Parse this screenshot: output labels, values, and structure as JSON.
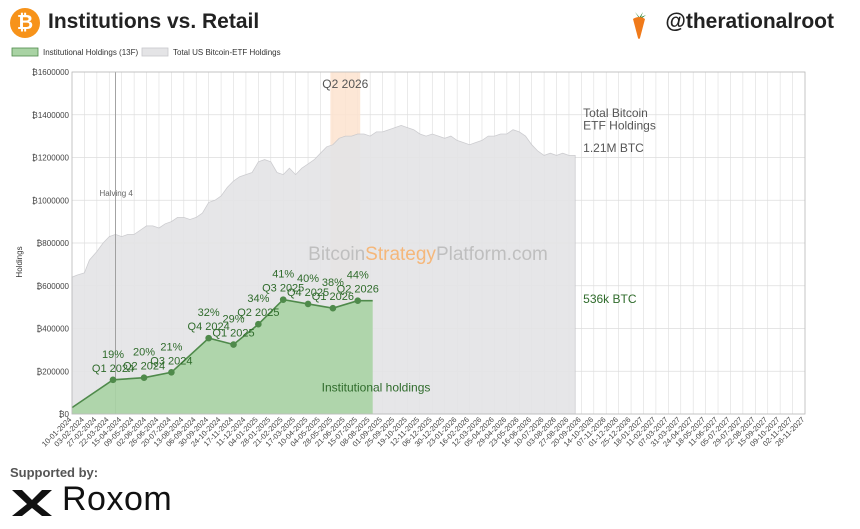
{
  "header": {
    "title": "Institutions vs. Retail",
    "brand": "@therationalroot",
    "logo_icon": "bitcoin-icon",
    "brand_icon": "carrot-icon"
  },
  "footer": {
    "supported_by": "Supported by:",
    "sponsor": "Roxom",
    "sponsor_icon": "roxom-logo-icon"
  },
  "chart_data": {
    "type": "area",
    "legend": [
      {
        "name": "Institutional Holdings (13F)",
        "color": "#a9d3a4"
      },
      {
        "name": "Total US Bitcoin-ETF Holdings",
        "color": "#e4e4e6"
      }
    ],
    "legend_position": "top-left",
    "ylabel": "Holdings",
    "yticks": [
      "₿0",
      "₿200000",
      "₿400000",
      "₿600000",
      "₿800000",
      "₿1000000",
      "₿1200000",
      "₿1400000",
      "₿1600000"
    ],
    "ylim": [
      0,
      1600000
    ],
    "grid": true,
    "watermark": {
      "pre": "Bitcoin",
      "mid": "Strategy",
      "post": "Platform.com"
    },
    "xticks": [
      "10-01-2024",
      "03-02-2024",
      "27-02-2024",
      "22-03-2024",
      "15-04-2024",
      "09-05-2024",
      "02-06-2024",
      "26-06-2024",
      "20-07-2024",
      "13-08-2024",
      "06-09-2024",
      "30-09-2024",
      "24-10-2024",
      "17-11-2024",
      "11-12-2024",
      "04-01-2025",
      "28-01-2025",
      "21-02-2025",
      "17-03-2025",
      "10-04-2025",
      "04-05-2025",
      "28-05-2025",
      "21-06-2025",
      "15-07-2025",
      "08-08-2025",
      "01-09-2025",
      "25-09-2025",
      "19-10-2025",
      "12-11-2025",
      "06-12-2025",
      "30-12-2025",
      "23-01-2026",
      "16-02-2026",
      "12-03-2026",
      "05-04-2026",
      "29-04-2026",
      "23-05-2026",
      "16-06-2026",
      "10-07-2026",
      "03-08-2026",
      "27-08-2026",
      "20-09-2026",
      "14-10-2026",
      "07-11-2026",
      "01-12-2026",
      "25-12-2026",
      "18-01-2027",
      "11-02-2027",
      "07-03-2027",
      "31-03-2027",
      "24-04-2027",
      "18-05-2027",
      "11-06-2027",
      "05-07-2027",
      "29-07-2027",
      "22-08-2027",
      "15-09-2027",
      "09-10-2027",
      "02-11-2027",
      "26-11-2027"
    ],
    "total_etf_series": {
      "name": "Total US Bitcoin-ETF Holdings",
      "x_tick_index": [
        0,
        0.4,
        1,
        1.4,
        2,
        2.5,
        3,
        3.5,
        4,
        4.5,
        5,
        5.5,
        6,
        6.5,
        7,
        7.5,
        8,
        8.5,
        9,
        9.5,
        10,
        10.5,
        11,
        11.5,
        12,
        12.5,
        13,
        13.5,
        14,
        14.5,
        15,
        15.5,
        16,
        16.5,
        17,
        17.5,
        18,
        18.5,
        19,
        19.5,
        20,
        20.5,
        21,
        21.5,
        22,
        22.5,
        23,
        23.5,
        24,
        24.5,
        25,
        25.5,
        26,
        26.5,
        27,
        27.5,
        28,
        28.5,
        29,
        29.5,
        30,
        30.5,
        31,
        31.5,
        32,
        32.5,
        33,
        33.5,
        34,
        34.5,
        35,
        35.5,
        36,
        36.5,
        37,
        37.5,
        38,
        38.5,
        39,
        39.5,
        40,
        40.5
      ],
      "values": [
        640000,
        650000,
        660000,
        720000,
        760000,
        800000,
        830000,
        840000,
        830000,
        840000,
        840000,
        860000,
        880000,
        880000,
        870000,
        890000,
        900000,
        920000,
        920000,
        910000,
        920000,
        940000,
        990000,
        1000000,
        1020000,
        1060000,
        1090000,
        1110000,
        1120000,
        1130000,
        1180000,
        1190000,
        1180000,
        1130000,
        1120000,
        1150000,
        1120000,
        1150000,
        1170000,
        1190000,
        1220000,
        1250000,
        1260000,
        1290000,
        1300000,
        1300000,
        1310000,
        1310000,
        1300000,
        1320000,
        1320000,
        1330000,
        1340000,
        1350000,
        1340000,
        1330000,
        1310000,
        1300000,
        1310000,
        1300000,
        1290000,
        1300000,
        1280000,
        1270000,
        1260000,
        1270000,
        1280000,
        1300000,
        1300000,
        1310000,
        1310000,
        1330000,
        1320000,
        1300000,
        1260000,
        1230000,
        1210000,
        1220000,
        1210000,
        1220000,
        1210000,
        1210000
      ]
    },
    "institutional_series": {
      "name": "Institutional Holdings (13F)",
      "x_tick_index": [
        0,
        3.3,
        5.8,
        8,
        11,
        13,
        15,
        17,
        19,
        21,
        23,
        24.2
      ],
      "values": [
        30000,
        160000,
        170000,
        195000,
        355000,
        325000,
        420000,
        535000,
        515000,
        495000,
        530000,
        530000
      ]
    },
    "quarter_points": [
      {
        "pct": "19%",
        "quarter": "Q1 2024",
        "x_tick_index": 3.3
      },
      {
        "pct": "20%",
        "quarter": "Q2 2024",
        "x_tick_index": 5.8
      },
      {
        "pct": "21%",
        "quarter": "Q3 2024",
        "x_tick_index": 8
      },
      {
        "pct": "32%",
        "quarter": "Q4 2024",
        "x_tick_index": 11
      },
      {
        "pct": "29%",
        "quarter": "Q1 2025",
        "x_tick_index": 13
      },
      {
        "pct": "34%",
        "quarter": "Q2 2025",
        "x_tick_index": 15
      },
      {
        "pct": "41%",
        "quarter": "Q3 2025",
        "x_tick_index": 17
      },
      {
        "pct": "40%",
        "quarter": "Q4 2025",
        "x_tick_index": 19
      },
      {
        "pct": "38%",
        "quarter": "Q1 2026",
        "x_tick_index": 21
      },
      {
        "pct": "44%",
        "quarter": "Q2 2026",
        "x_tick_index": 23
      }
    ],
    "halving": {
      "label": "Halving 4",
      "x_tick_index": 3.5
    },
    "highlight": {
      "label": "Q2 2026",
      "x_tick_range": [
        20.8,
        23.2
      ]
    },
    "annotations": {
      "total_label_line1": "Total Bitcoin",
      "total_label_line2": "ETF Holdings",
      "total_value": "1.21M BTC",
      "inst_value": "536k BTC",
      "inst_area_label": "Institutional holdings"
    },
    "colors": {
      "total_fill": "#e4e4e6",
      "total_line": "#c8c8cc",
      "inst_fill": "#a9d3a4",
      "inst_line": "#4f8a4b",
      "text_green": "#2f6b2b",
      "highlight": "#fde3cf",
      "grid": "#dddddd",
      "watermark_grey": "#bfbfbf",
      "watermark_orange": "#f5b77a"
    }
  }
}
